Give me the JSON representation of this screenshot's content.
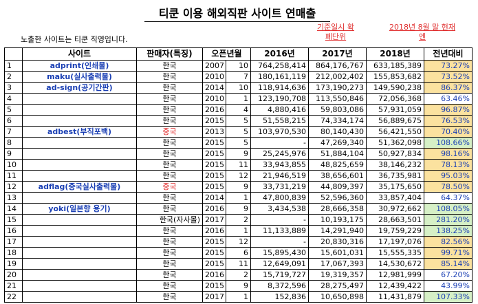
{
  "title": "티쿤 이용 해외직판 사이트 연매출",
  "note": "노출한 사이트는 티쿤 직영입니다.",
  "red_note_1": "기준일시 확폐단위",
  "red_note_2": "2018년 8월 말 현재 엔",
  "headers": [
    "사이트",
    "판매자(특징)",
    "오픈년월",
    "2016년",
    "2017년",
    "2018년",
    "전년대비"
  ],
  "rows": [
    {
      "no": "1",
      "site": "adprint(인쇄물)",
      "seller": "한국",
      "year": "2007",
      "month": "10",
      "y2016": "764,258,414",
      "y2017": "864,176,767",
      "y2018": "633,185,389",
      "pct": "73.27%"
    },
    {
      "no": "2",
      "site": "maku(실사출력물)",
      "seller": "한국",
      "year": "2010",
      "month": "7",
      "y2016": "180,161,119",
      "y2017": "212,002,402",
      "y2018": "155,853,682",
      "pct": "73.52%"
    },
    {
      "no": "3",
      "site": "ad-sign(공기간판)",
      "seller": "한국",
      "year": "2014",
      "month": "10",
      "y2016": "118,914,636",
      "y2017": "173,190,273",
      "y2018": "149,590,238",
      "pct": "86.37%"
    },
    {
      "no": "4",
      "site": "",
      "seller": "한국",
      "year": "2010",
      "month": "1",
      "y2016": "123,190,708",
      "y2017": "113,550,846",
      "y2018": "72,056,368",
      "pct": "63.46%"
    },
    {
      "no": "5",
      "site": "",
      "seller": "한국",
      "year": "2016",
      "month": "4",
      "y2016": "4,880,416",
      "y2017": "59,803,086",
      "y2018": "57,931,059",
      "pct": "96.87%"
    },
    {
      "no": "6",
      "site": "",
      "seller": "한국",
      "year": "2015",
      "month": "5",
      "y2016": "51,558,215",
      "y2017": "74,334,174",
      "y2018": "56,889,675",
      "pct": "76.53%"
    },
    {
      "no": "7",
      "site": "adbest(부직포백)",
      "seller": "중국",
      "year": "2013",
      "month": "5",
      "y2016": "103,970,530",
      "y2017": "80,140,430",
      "y2018": "56,421,550",
      "pct": "70.40%"
    },
    {
      "no": "8",
      "site": "",
      "seller": "한국",
      "year": "2015",
      "month": "5",
      "y2016": "-",
      "y2017": "47,269,340",
      "y2018": "51,362,098",
      "pct": "108.66%"
    },
    {
      "no": "9",
      "site": "",
      "seller": "한국",
      "year": "2015",
      "month": "9",
      "y2016": "25,245,976",
      "y2017": "51,884,104",
      "y2018": "50,927,834",
      "pct": "98.16%"
    },
    {
      "no": "10",
      "site": "",
      "seller": "한국",
      "year": "2015",
      "month": "11",
      "y2016": "33,943,855",
      "y2017": "48,825,659",
      "y2018": "38,146,232",
      "pct": "78.13%"
    },
    {
      "no": "11",
      "site": "",
      "seller": "한국",
      "year": "2015",
      "month": "12",
      "y2016": "21,946,519",
      "y2017": "38,656,601",
      "y2018": "36,735,981",
      "pct": "95.03%"
    },
    {
      "no": "12",
      "site": "adflag(중국실사출력물)",
      "seller": "중국",
      "year": "2015",
      "month": "9",
      "y2016": "33,731,219",
      "y2017": "44,809,397",
      "y2018": "35,175,650",
      "pct": "78.50%"
    },
    {
      "no": "13",
      "site": "",
      "seller": "한국",
      "year": "2014",
      "month": "1",
      "y2016": "47,800,839",
      "y2017": "52,596,360",
      "y2018": "33,857,404",
      "pct": "64.37%"
    },
    {
      "no": "14",
      "site": "yoki(일본향 용기)",
      "seller": "한국",
      "year": "2016",
      "month": "9",
      "y2016": "3,434,538",
      "y2017": "28,666,358",
      "y2018": "30,972,662",
      "pct": "108.05%"
    },
    {
      "no": "15",
      "site": "",
      "seller": "한국(자사몰)",
      "year": "2017",
      "month": "2",
      "y2016": "-",
      "y2017": "10,193,175",
      "y2018": "28,663,501",
      "pct": "281.20%"
    },
    {
      "no": "16",
      "site": "",
      "seller": "한국",
      "year": "2016",
      "month": "1",
      "y2016": "11,133,889",
      "y2017": "14,291,940",
      "y2018": "19,759,229",
      "pct": "138.25%"
    },
    {
      "no": "17",
      "site": "",
      "seller": "한국",
      "year": "2015",
      "month": "12",
      "y2016": "-",
      "y2017": "20,830,316",
      "y2018": "17,197,076",
      "pct": "82.56%"
    },
    {
      "no": "18",
      "site": "",
      "seller": "한국",
      "year": "2015",
      "month": "6",
      "y2016": "15,895,430",
      "y2017": "15,601,031",
      "y2018": "15,555,335",
      "pct": "99.71%"
    },
    {
      "no": "19",
      "site": "",
      "seller": "한국",
      "year": "2015",
      "month": "11",
      "y2016": "12,649,091",
      "y2017": "17,067,393",
      "y2018": "14,530,672",
      "pct": "85.14%"
    },
    {
      "no": "20",
      "site": "",
      "seller": "한국",
      "year": "2016",
      "month": "2",
      "y2016": "15,719,727",
      "y2017": "19,319,357",
      "y2018": "12,981,999",
      "pct": "67.20%"
    },
    {
      "no": "21",
      "site": "",
      "seller": "한국",
      "year": "2015",
      "month": "9",
      "y2016": "8,372,596",
      "y2017": "28,275,497",
      "y2018": "12,439,422",
      "pct": "43.99%"
    },
    {
      "no": "22",
      "site": "",
      "seller": "한국",
      "year": "2017",
      "month": "1",
      "y2016": "152,836",
      "y2017": "10,650,898",
      "y2018": "11,431,879",
      "pct": "107.33%"
    }
  ],
  "colors": {
    "site_text": "#1a3fb4",
    "china_text": "#e02020",
    "pct_up_bg": "#fbe29f",
    "pct_green_bg": "#d6f0c6",
    "red_note": "#e03030"
  }
}
